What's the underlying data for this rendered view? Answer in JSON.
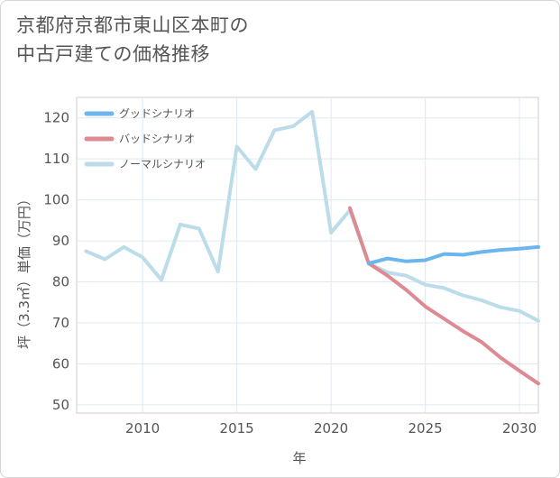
{
  "title": {
    "line1": "京都府京都市東山区本町の",
    "line2": "中古戸建ての価格推移"
  },
  "chart_data": {
    "type": "line",
    "xlabel": "年",
    "ylabel": "坪（3.3㎡）単価（万円）",
    "xlim": [
      2006.5,
      2031
    ],
    "ylim": [
      48,
      125
    ],
    "xticks": [
      2010,
      2015,
      2020,
      2025,
      2030
    ],
    "yticks": [
      50,
      60,
      70,
      80,
      90,
      100,
      110,
      120
    ],
    "grid": true,
    "legend_position": "top-left",
    "series": [
      {
        "name": "グッドシナリオ",
        "color": "#6bb6ec",
        "x": [
          2022,
          2023,
          2024,
          2025,
          2026,
          2027,
          2028,
          2029,
          2030,
          2031
        ],
        "y": [
          84.5,
          85.7,
          85.0,
          85.3,
          86.8,
          86.6,
          87.3,
          87.8,
          88.1,
          88.5
        ]
      },
      {
        "name": "バッドシナリオ",
        "color": "#dd8a93",
        "x": [
          2021,
          2022,
          2023,
          2024,
          2025,
          2026,
          2027,
          2028,
          2029,
          2030,
          2031
        ],
        "y": [
          98.0,
          84.5,
          81.5,
          78.0,
          74.0,
          71.0,
          68.0,
          65.3,
          61.5,
          58.3,
          55.2
        ]
      },
      {
        "name": "ノーマルシナリオ",
        "color": "#bcdcea",
        "x": [
          2007,
          2008,
          2009,
          2010,
          2011,
          2012,
          2013,
          2014,
          2015,
          2016,
          2017,
          2018,
          2019,
          2020,
          2021,
          2022,
          2023,
          2024,
          2025,
          2026,
          2027,
          2028,
          2029,
          2030,
          2031
        ],
        "y": [
          87.5,
          85.5,
          88.5,
          86.0,
          80.5,
          94.0,
          93.0,
          82.5,
          113.0,
          107.5,
          117.0,
          118.0,
          121.5,
          92.0,
          97.5,
          84.5,
          82.3,
          81.5,
          79.3,
          78.5,
          76.7,
          75.5,
          73.8,
          72.9,
          70.5
        ]
      }
    ]
  }
}
